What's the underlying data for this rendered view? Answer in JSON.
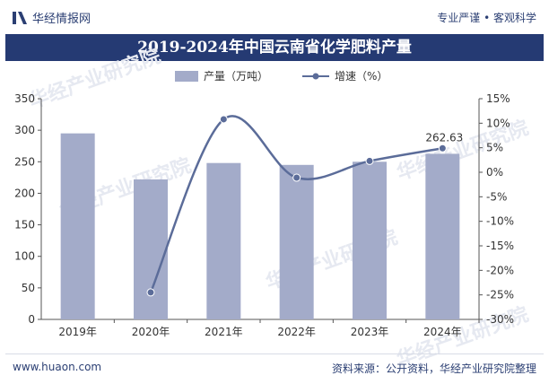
{
  "header": {
    "brand_name": "华经情报网",
    "tagline": "专业严谨 • 客观科学"
  },
  "title": "2019-2024年中国云南省化学肥料产量",
  "legend": {
    "bar_label": "产量（万吨）",
    "line_label": "增速（%）"
  },
  "watermarks": [
    "华经产业研究院",
    "www.huaon.com"
  ],
  "footer": {
    "url": "www.huaon.com",
    "source": "资料来源：公开资料，华经产业研究院整理"
  },
  "colors": {
    "title_bg": "#253a73",
    "bar": "#a3abc9",
    "line": "#5b6c99",
    "text_dark": "#2b3f73"
  },
  "chart_data": {
    "type": "bar+line",
    "categories": [
      "2019年",
      "2020年",
      "2021年",
      "2022年",
      "2023年",
      "2024年"
    ],
    "series": [
      {
        "name": "产量（万吨）",
        "type": "bar",
        "axis": "left",
        "values": [
          295,
          222,
          248,
          245,
          250,
          262.63
        ]
      },
      {
        "name": "增速（%）",
        "type": "line",
        "axis": "right",
        "values": [
          null,
          -24.5,
          10.8,
          -1.1,
          2.3,
          4.9
        ]
      }
    ],
    "y_left": {
      "min": 0,
      "max": 350,
      "ticks": [
        0,
        50,
        100,
        150,
        200,
        250,
        300,
        350
      ]
    },
    "y_right": {
      "min": -30,
      "max": 15,
      "ticks": [
        "-30%",
        "-25%",
        "-20%",
        "-15%",
        "-10%",
        "-5%",
        "0%",
        "5%",
        "10%",
        "15%"
      ]
    },
    "data_labels": [
      {
        "category": "2024年",
        "text": "262.63"
      }
    ],
    "grid": false
  }
}
